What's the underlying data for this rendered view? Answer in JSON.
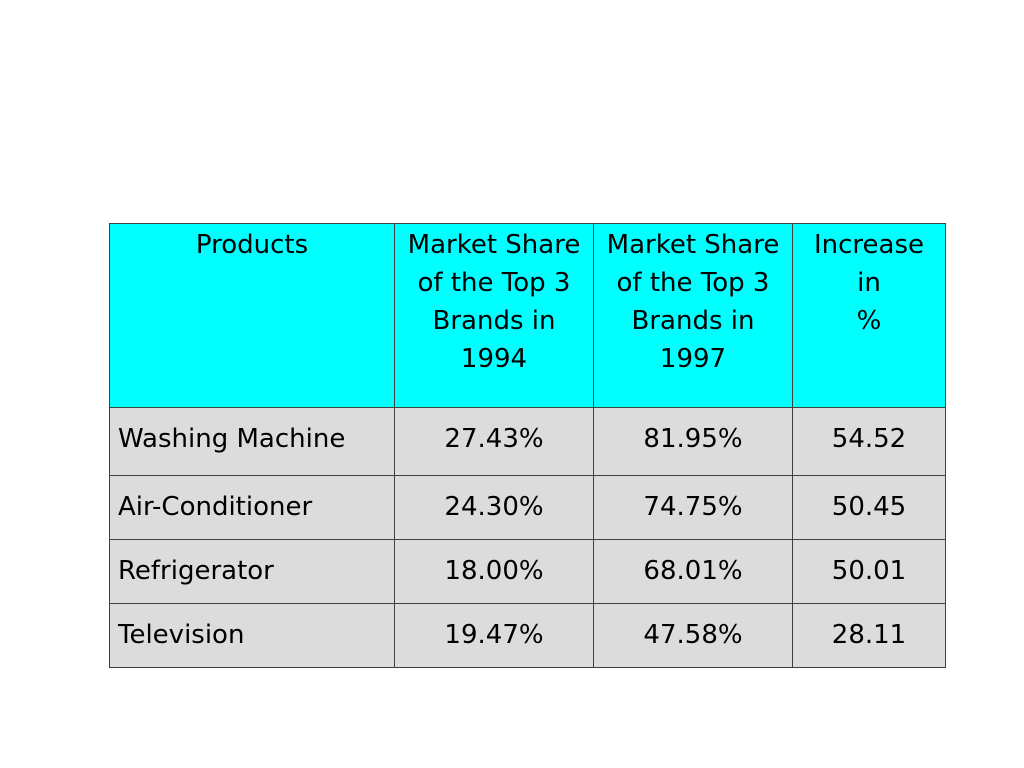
{
  "table": {
    "headers": [
      [
        "Products"
      ],
      [
        "Market Share",
        "of the Top 3",
        "Brands in",
        "1994"
      ],
      [
        "Market Share",
        "of the Top 3",
        "Brands in",
        "1997"
      ],
      [
        "Increase",
        "in",
        "%"
      ]
    ],
    "rows": [
      [
        "Washing Machine",
        "27.43%",
        "81.95%",
        "54.52"
      ],
      [
        "Air-Conditioner",
        "24.30%",
        "74.75%",
        "50.45"
      ],
      [
        "Refrigerator",
        "18.00%",
        "68.01%",
        "50.01"
      ],
      [
        "Television",
        "19.47%",
        "47.58%",
        "28.11"
      ]
    ]
  },
  "colors": {
    "header_background": "#00ffff",
    "row_background": "#dcdcdc",
    "border": "#404040"
  }
}
